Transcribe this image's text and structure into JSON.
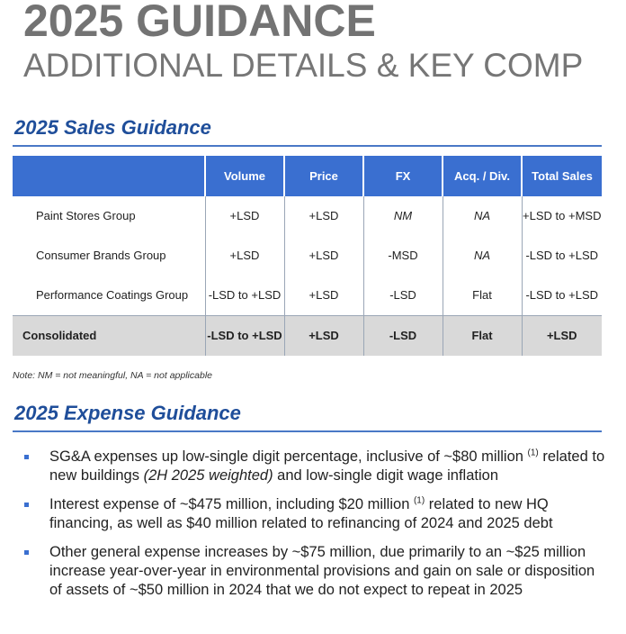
{
  "header": {
    "title": "2025 GUIDANCE",
    "subtitle": "ADDITIONAL DETAILS & KEY COMP"
  },
  "sales": {
    "heading": "2025 Sales Guidance",
    "columns": [
      "",
      "Volume",
      "Price",
      "FX",
      "Acq. / Div.",
      "Total Sales"
    ],
    "rows": [
      {
        "label": "Paint Stores Group",
        "volume": "+LSD",
        "price": "+LSD",
        "fx": "NM",
        "acq": "NA",
        "total": "+LSD to +MSD"
      },
      {
        "label": "Consumer Brands Group",
        "volume": "+LSD",
        "price": "+LSD",
        "fx": "-MSD",
        "acq": "NA",
        "total": "-LSD to +LSD"
      },
      {
        "label": "Performance Coatings Group",
        "volume": "-LSD to +LSD",
        "price": "+LSD",
        "fx": "-LSD",
        "acq": "Flat",
        "total": "-LSD to +LSD"
      }
    ],
    "consolidated": {
      "label": "Consolidated",
      "volume": "-LSD to +LSD",
      "price": "+LSD",
      "fx": "-LSD",
      "acq": "Flat",
      "total": "+LSD"
    },
    "note": "Note: NM = not meaningful, NA = not applicable"
  },
  "expense": {
    "heading": "2025 Expense Guidance",
    "bullet1": {
      "a": "SG&A expenses up low-single digit percentage, inclusive of ~$80 million ",
      "sup": "(1)",
      "b": " related to new buildings ",
      "em": "(2H 2025 weighted)",
      "c": " and low-single digit wage inflation"
    },
    "bullet2": {
      "a": "Interest expense of ~$475 million, including $20 million ",
      "sup": "(1)",
      "b": " related to new HQ financing, as well as $40 million related to refinancing of 2024 and 2025 debt"
    },
    "bullet3": {
      "text": "Other general expense increases by ~$75 million, due primarily to an ~$25 million increase year-over-year in environmental provisions and gain on sale or disposition of assets of ~$50 million in 2024 that we do not expect to repeat in 2025"
    }
  },
  "colors": {
    "accent_blue": "#3a6fd0",
    "heading_blue": "#1f4e9a",
    "title_gray": "#737373",
    "consolidated_row": "#d9d9d9"
  }
}
